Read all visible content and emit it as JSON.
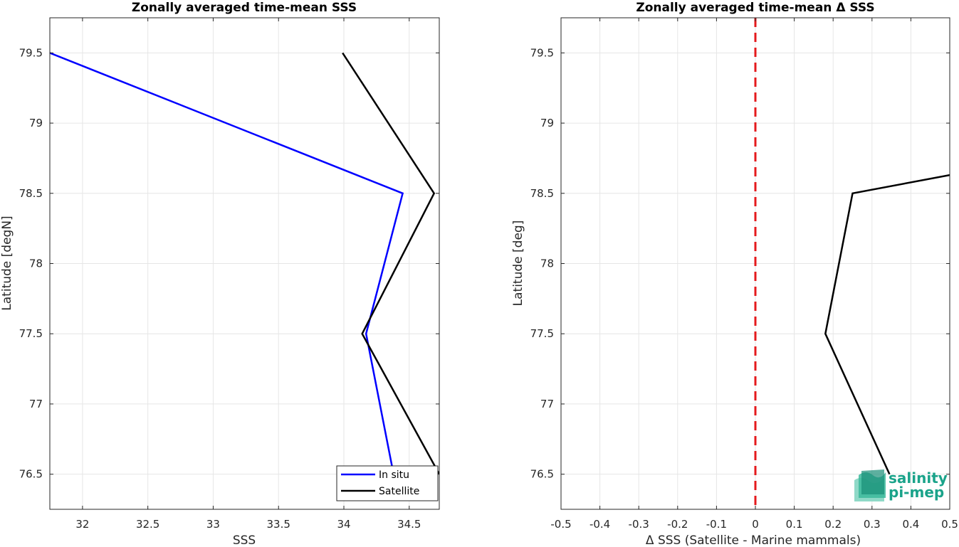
{
  "chart_data": [
    {
      "type": "line",
      "title": "Zonally averaged time-mean SSS",
      "xlabel": "SSS",
      "ylabel": "Latitude [degN]",
      "xlim": [
        31.75,
        34.73
      ],
      "ylim": [
        76.25,
        79.75
      ],
      "xticks": [
        "32",
        "32.5",
        "33",
        "33.5",
        "34",
        "34.5"
      ],
      "yticks": [
        "76.5",
        "77",
        "77.5",
        "78",
        "78.5",
        "79",
        "79.5"
      ],
      "grid": true,
      "legend_position": "bottom-right",
      "series": [
        {
          "name": "In situ",
          "color": "#0000ff",
          "points": [
            {
              "x": 31.75,
              "y": 79.5
            },
            {
              "x": 34.45,
              "y": 78.5
            },
            {
              "x": 34.17,
              "y": 77.5
            },
            {
              "x": 34.38,
              "y": 76.5
            }
          ]
        },
        {
          "name": "Satellite",
          "color": "#000000",
          "points": [
            {
              "x": 33.99,
              "y": 79.5
            },
            {
              "x": 34.69,
              "y": 78.5
            },
            {
              "x": 34.14,
              "y": 77.5
            },
            {
              "x": 34.73,
              "y": 76.5
            }
          ]
        }
      ]
    },
    {
      "type": "line",
      "title": "Zonally averaged time-mean Δ SSS",
      "xlabel": "Δ SSS (Satellite - Marine mammals)",
      "ylabel": "Latitude [deg]",
      "xlim": [
        -0.5,
        0.5
      ],
      "ylim": [
        76.25,
        79.75
      ],
      "xticks": [
        "-0.5",
        "-0.4",
        "-0.3",
        "-0.2",
        "-0.1",
        "0",
        "0.1",
        "0.2",
        "0.3",
        "0.4",
        "0.5"
      ],
      "yticks": [
        "76.5",
        "77",
        "77.5",
        "78",
        "78.5",
        "79",
        "79.5"
      ],
      "grid": true,
      "reference_line": {
        "x": 0,
        "color": "#e41a1c",
        "style": "dashed"
      },
      "series": [
        {
          "color": "#000000",
          "points": [
            {
              "x": 0.5,
              "y": 78.63
            },
            {
              "x": 0.25,
              "y": 78.5
            },
            {
              "x": 0.18,
              "y": 77.5
            },
            {
              "x": 0.345,
              "y": 76.5
            }
          ]
        }
      ]
    }
  ],
  "logo": {
    "line1": "salinity",
    "line2": "pi-mep",
    "color": "#1aa38a"
  }
}
